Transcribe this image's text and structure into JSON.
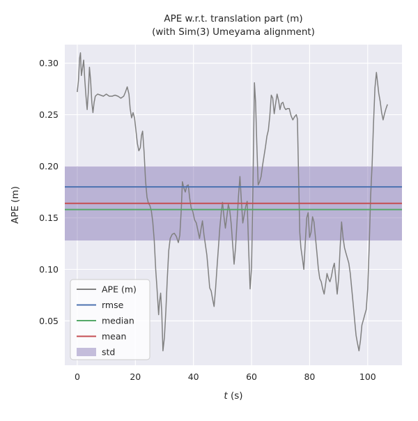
{
  "title": {
    "line1": "APE w.r.t. translation part (m)",
    "line2": "(with Sim(3) Umeyama alignment)"
  },
  "labels": {
    "xlabel_var": "t",
    "xlabel_rest": " (s)",
    "ylabel": "APE (m)"
  },
  "chart_data": {
    "type": "line",
    "title": "APE w.r.t. translation part (m)\n(with Sim(3) Umeyama alignment)",
    "xlabel": "t (s)",
    "ylabel": "APE (m)",
    "xlim": [
      -4.3,
      111.8
    ],
    "ylim": [
      0.007,
      0.318
    ],
    "xticks": [
      0,
      20,
      40,
      60,
      80,
      100
    ],
    "xtick_labels": [
      "0",
      "20",
      "40",
      "60",
      "80",
      "100"
    ],
    "yticks": [
      0.05,
      0.1,
      0.15,
      0.2,
      0.25,
      0.3
    ],
    "ytick_labels": [
      "0.05",
      "0.10",
      "0.15",
      "0.20",
      "0.25",
      "0.30"
    ],
    "grid": true,
    "legend_position": "lower left",
    "stats": {
      "rmse": 0.18,
      "mean": 0.164,
      "median": 0.158,
      "std_low": 0.128,
      "std_high": 0.2
    },
    "colors": {
      "axes_bg": "#eaeaf2",
      "grid": "#ffffff",
      "text": "#262626",
      "ape_line": "#808080",
      "rmse": "#4c72b0",
      "median": "#55a868",
      "mean": "#c44e52",
      "std_band": "rgba(129,114,178,0.45)",
      "legend_bg": "rgba(255,255,255,0.8)",
      "legend_border": "#cccccc"
    },
    "legend": [
      {
        "label": "APE (m)",
        "type": "line",
        "color": "#808080"
      },
      {
        "label": "rmse",
        "type": "line",
        "color": "#4c72b0"
      },
      {
        "label": "median",
        "type": "line",
        "color": "#55a868"
      },
      {
        "label": "mean",
        "type": "line",
        "color": "#c44e52"
      },
      {
        "label": "std",
        "type": "patch",
        "color": "rgba(129,114,178,0.45)"
      }
    ],
    "series": [
      {
        "name": "APE (m)",
        "points": [
          [
            0,
            0.272
          ],
          [
            0.4,
            0.283
          ],
          [
            0.8,
            0.305
          ],
          [
            1.1,
            0.31
          ],
          [
            1.4,
            0.288
          ],
          [
            1.8,
            0.295
          ],
          [
            2.2,
            0.303
          ],
          [
            2.6,
            0.283
          ],
          [
            3,
            0.268
          ],
          [
            3.4,
            0.255
          ],
          [
            3.8,
            0.272
          ],
          [
            4.2,
            0.296
          ],
          [
            4.6,
            0.283
          ],
          [
            5,
            0.262
          ],
          [
            5.4,
            0.252
          ],
          [
            5.8,
            0.262
          ],
          [
            6.2,
            0.268
          ],
          [
            7,
            0.27
          ],
          [
            8,
            0.269
          ],
          [
            9,
            0.268
          ],
          [
            10,
            0.27
          ],
          [
            11,
            0.268
          ],
          [
            12,
            0.268
          ],
          [
            13,
            0.269
          ],
          [
            14,
            0.268
          ],
          [
            15,
            0.266
          ],
          [
            16,
            0.268
          ],
          [
            16.6,
            0.272
          ],
          [
            17.2,
            0.277
          ],
          [
            17.8,
            0.27
          ],
          [
            18.2,
            0.256
          ],
          [
            18.7,
            0.247
          ],
          [
            19.2,
            0.252
          ],
          [
            19.7,
            0.247
          ],
          [
            20.2,
            0.235
          ],
          [
            20.7,
            0.222
          ],
          [
            21.2,
            0.215
          ],
          [
            21.7,
            0.218
          ],
          [
            22.1,
            0.23
          ],
          [
            22.5,
            0.234
          ],
          [
            23,
            0.214
          ],
          [
            23.5,
            0.186
          ],
          [
            24,
            0.17
          ],
          [
            24.5,
            0.164
          ],
          [
            25,
            0.162
          ],
          [
            25.5,
            0.157
          ],
          [
            26,
            0.146
          ],
          [
            26.5,
            0.128
          ],
          [
            27,
            0.1
          ],
          [
            27.5,
            0.079
          ],
          [
            28,
            0.056
          ],
          [
            28.3,
            0.068
          ],
          [
            28.7,
            0.077
          ],
          [
            29.1,
            0.058
          ],
          [
            29.5,
            0.021
          ],
          [
            30,
            0.034
          ],
          [
            30.5,
            0.06
          ],
          [
            31,
            0.092
          ],
          [
            31.5,
            0.118
          ],
          [
            32,
            0.13
          ],
          [
            32.7,
            0.134
          ],
          [
            33.4,
            0.135
          ],
          [
            34.1,
            0.132
          ],
          [
            34.8,
            0.126
          ],
          [
            35.3,
            0.133
          ],
          [
            35.8,
            0.158
          ],
          [
            36.2,
            0.185
          ],
          [
            36.7,
            0.179
          ],
          [
            37.2,
            0.175
          ],
          [
            37.7,
            0.181
          ],
          [
            38.2,
            0.182
          ],
          [
            38.7,
            0.169
          ],
          [
            39.2,
            0.16
          ],
          [
            39.8,
            0.156
          ],
          [
            40.4,
            0.148
          ],
          [
            41,
            0.145
          ],
          [
            41.6,
            0.137
          ],
          [
            42.1,
            0.13
          ],
          [
            42.6,
            0.139
          ],
          [
            43.1,
            0.147
          ],
          [
            43.6,
            0.134
          ],
          [
            44.1,
            0.124
          ],
          [
            44.6,
            0.114
          ],
          [
            45.1,
            0.099
          ],
          [
            45.6,
            0.082
          ],
          [
            46.1,
            0.079
          ],
          [
            46.6,
            0.071
          ],
          [
            47.1,
            0.064
          ],
          [
            47.6,
            0.081
          ],
          [
            48.1,
            0.101
          ],
          [
            48.6,
            0.121
          ],
          [
            49.1,
            0.141
          ],
          [
            49.6,
            0.156
          ],
          [
            50,
            0.165
          ],
          [
            50.5,
            0.151
          ],
          [
            51,
            0.14
          ],
          [
            51.5,
            0.151
          ],
          [
            52,
            0.163
          ],
          [
            52.5,
            0.157
          ],
          [
            53,
            0.144
          ],
          [
            53.5,
            0.124
          ],
          [
            54,
            0.105
          ],
          [
            54.5,
            0.121
          ],
          [
            55,
            0.146
          ],
          [
            55.5,
            0.171
          ],
          [
            56,
            0.19
          ],
          [
            56.5,
            0.166
          ],
          [
            57,
            0.145
          ],
          [
            57.5,
            0.153
          ],
          [
            58,
            0.161
          ],
          [
            58.5,
            0.166
          ],
          [
            59,
            0.12
          ],
          [
            59.5,
            0.081
          ],
          [
            60,
            0.102
          ],
          [
            60.5,
            0.18
          ],
          [
            61,
            0.281
          ],
          [
            61.4,
            0.262
          ],
          [
            61.8,
            0.222
          ],
          [
            62.3,
            0.182
          ],
          [
            62.8,
            0.185
          ],
          [
            63.3,
            0.19
          ],
          [
            63.8,
            0.201
          ],
          [
            64.3,
            0.21
          ],
          [
            64.8,
            0.219
          ],
          [
            65.3,
            0.229
          ],
          [
            65.8,
            0.235
          ],
          [
            66.3,
            0.249
          ],
          [
            66.8,
            0.269
          ],
          [
            67.3,
            0.266
          ],
          [
            67.8,
            0.251
          ],
          [
            68.3,
            0.261
          ],
          [
            68.8,
            0.27
          ],
          [
            69.3,
            0.264
          ],
          [
            69.8,
            0.255
          ],
          [
            70.3,
            0.261
          ],
          [
            70.8,
            0.262
          ],
          [
            71.3,
            0.257
          ],
          [
            71.8,
            0.255
          ],
          [
            72.4,
            0.256
          ],
          [
            73,
            0.256
          ],
          [
            73.6,
            0.249
          ],
          [
            74.2,
            0.245
          ],
          [
            74.8,
            0.248
          ],
          [
            75.4,
            0.25
          ],
          [
            75.8,
            0.246
          ],
          [
            76.2,
            0.19
          ],
          [
            76.6,
            0.136
          ],
          [
            77,
            0.121
          ],
          [
            77.5,
            0.111
          ],
          [
            78,
            0.1
          ],
          [
            78.5,
            0.126
          ],
          [
            79,
            0.15
          ],
          [
            79.5,
            0.155
          ],
          [
            80,
            0.131
          ],
          [
            80.5,
            0.136
          ],
          [
            81,
            0.151
          ],
          [
            81.5,
            0.146
          ],
          [
            82,
            0.131
          ],
          [
            82.5,
            0.116
          ],
          [
            83,
            0.101
          ],
          [
            83.5,
            0.091
          ],
          [
            84,
            0.088
          ],
          [
            84.5,
            0.081
          ],
          [
            85,
            0.076
          ],
          [
            85.5,
            0.086
          ],
          [
            86,
            0.096
          ],
          [
            86.5,
            0.091
          ],
          [
            87,
            0.088
          ],
          [
            87.5,
            0.093
          ],
          [
            88,
            0.101
          ],
          [
            88.5,
            0.106
          ],
          [
            89,
            0.091
          ],
          [
            89.5,
            0.076
          ],
          [
            90,
            0.091
          ],
          [
            90.5,
            0.121
          ],
          [
            91,
            0.146
          ],
          [
            91.5,
            0.131
          ],
          [
            92,
            0.121
          ],
          [
            92.5,
            0.116
          ],
          [
            93,
            0.111
          ],
          [
            93.5,
            0.106
          ],
          [
            94,
            0.096
          ],
          [
            94.5,
            0.081
          ],
          [
            95,
            0.066
          ],
          [
            95.5,
            0.051
          ],
          [
            96,
            0.036
          ],
          [
            96.5,
            0.028
          ],
          [
            97,
            0.021
          ],
          [
            97.5,
            0.031
          ],
          [
            98,
            0.046
          ],
          [
            98.5,
            0.051
          ],
          [
            99,
            0.056
          ],
          [
            99.5,
            0.061
          ],
          [
            100,
            0.081
          ],
          [
            100.5,
            0.121
          ],
          [
            101,
            0.171
          ],
          [
            101.5,
            0.201
          ],
          [
            102,
            0.241
          ],
          [
            102.5,
            0.276
          ],
          [
            103,
            0.291
          ],
          [
            103.4,
            0.281
          ],
          [
            103.8,
            0.271
          ],
          [
            104.3,
            0.263
          ],
          [
            104.8,
            0.252
          ],
          [
            105.3,
            0.245
          ],
          [
            105.8,
            0.251
          ],
          [
            106.3,
            0.256
          ],
          [
            106.8,
            0.26
          ]
        ]
      }
    ]
  }
}
